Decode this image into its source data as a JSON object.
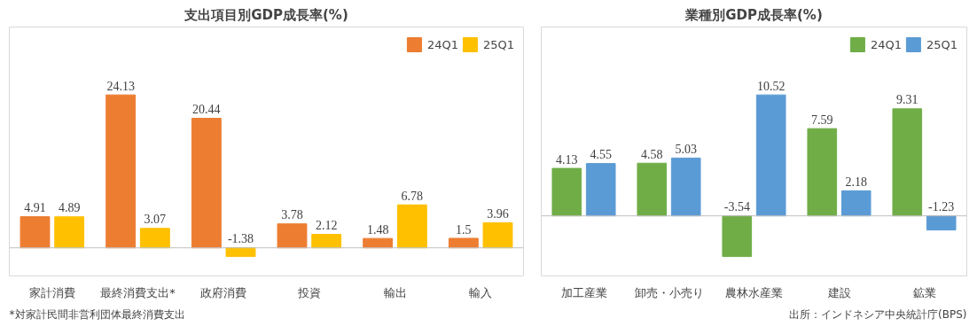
{
  "chart_data": [
    {
      "type": "bar",
      "title": "支出項目別GDP成長率(%)",
      "categories": [
        "家計消費",
        "最終消費支出*",
        "政府消費",
        "投資",
        "輸出",
        "輸入"
      ],
      "series": [
        {
          "name": "24Q1",
          "color": "#ed7d31",
          "values": [
            4.91,
            24.13,
            20.44,
            3.78,
            1.48,
            1.5
          ]
        },
        {
          "name": "25Q1",
          "color": "#ffc000",
          "values": [
            4.89,
            3.07,
            -1.38,
            2.12,
            6.78,
            3.96
          ]
        }
      ],
      "data_labels": true,
      "legend": "top right",
      "grid": false,
      "annotations": [
        "*対家計民間非営利団体最終消費支出"
      ]
    },
    {
      "type": "bar",
      "title": "業種別GDP成長率(%)",
      "categories": [
        "加工産業",
        "卸売・小売り",
        "農林水産業",
        "建設",
        "鉱業"
      ],
      "series": [
        {
          "name": "24Q1",
          "color": "#70ad47",
          "values": [
            4.13,
            4.58,
            -3.54,
            7.59,
            9.31
          ]
        },
        {
          "name": "25Q1",
          "color": "#5b9bd5",
          "values": [
            4.55,
            5.03,
            10.52,
            2.18,
            -1.23
          ]
        }
      ],
      "data_labels": true,
      "legend": "top right",
      "grid": false,
      "annotations": [
        "出所：インドネシア中央統計庁(BPS)"
      ]
    }
  ]
}
